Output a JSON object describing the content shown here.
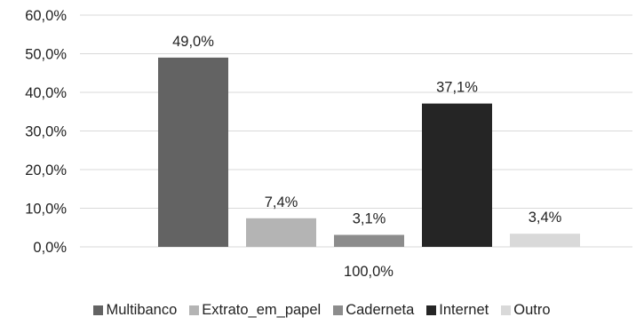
{
  "chart_data": {
    "type": "bar",
    "categories": [
      "100,0%"
    ],
    "ylim": [
      0,
      60
    ],
    "yticks": [
      "0,0%",
      "10,0%",
      "20,0%",
      "30,0%",
      "40,0%",
      "50,0%",
      "60,0%"
    ],
    "grid": true,
    "legend_position": "bottom",
    "series": [
      {
        "name": "Multibanco",
        "values": [
          49.0
        ],
        "label": "49,0%",
        "color": "#636363"
      },
      {
        "name": "Extrato_em_papel",
        "values": [
          7.4
        ],
        "label": "7,4%",
        "color": "#b4b4b4"
      },
      {
        "name": "Caderneta",
        "values": [
          3.1
        ],
        "label": "3,1%",
        "color": "#8c8c8c"
      },
      {
        "name": "Internet",
        "values": [
          37.1
        ],
        "label": "37,1%",
        "color": "#252525"
      },
      {
        "name": "Outro",
        "values": [
          3.4
        ],
        "label": "3,4%",
        "color": "#d9d9d9"
      }
    ]
  }
}
